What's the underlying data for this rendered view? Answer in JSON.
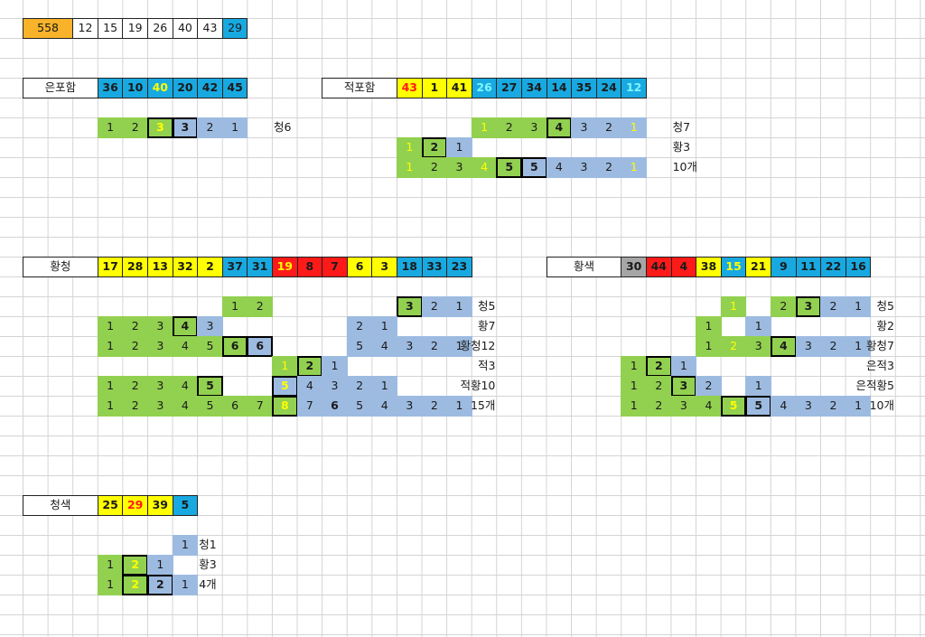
{
  "colors": {
    "orange": "#f8b32a",
    "yellow": "#ffff00",
    "blue": "#18a9e1",
    "red": "#ff1a1a",
    "gray": "#a6a6a6",
    "green": "#92d050",
    "lightblue": "#9dbbe0",
    "white": "#ffffff",
    "text_dark": "#1a1a1a",
    "text_red": "#ff1a1a",
    "text_yellow": "#ffff00",
    "text_cyan": "#7ff5ff"
  },
  "header_row": [
    {
      "text": "558",
      "color": "orange"
    },
    {
      "text": "12",
      "color": "white"
    },
    {
      "text": "15",
      "color": "white"
    },
    {
      "text": "19",
      "color": "white"
    },
    {
      "text": "26",
      "color": "white"
    },
    {
      "text": "40",
      "color": "white"
    },
    {
      "text": "43",
      "color": "white"
    },
    {
      "text": "29",
      "color": "blue"
    }
  ],
  "groups": [
    {
      "label": "은포함",
      "numbers": [
        {
          "text": "36",
          "color": "blue"
        },
        {
          "text": "10",
          "color": "blue"
        },
        {
          "text": "40",
          "color": "blue",
          "text_color": "yellow"
        },
        {
          "text": "20",
          "color": "blue"
        },
        {
          "text": "42",
          "color": "blue"
        },
        {
          "text": "45",
          "color": "blue"
        }
      ],
      "rows": [
        {
          "cells": [
            {
              "text": "1",
              "color": "green"
            },
            {
              "text": "2",
              "color": "green"
            },
            {
              "text": "3",
              "color": "green",
              "text_color": "yellow",
              "boxed": true
            },
            {
              "text": "3",
              "color": "lightblue",
              "boxed": true
            },
            {
              "text": "2",
              "color": "lightblue"
            },
            {
              "text": "1",
              "color": "lightblue"
            }
          ],
          "tag": "청6"
        }
      ]
    },
    {
      "label": "적포함",
      "numbers": [
        {
          "text": "43",
          "color": "yellow",
          "text_color": "red"
        },
        {
          "text": "1",
          "color": "yellow"
        },
        {
          "text": "41",
          "color": "yellow"
        },
        {
          "text": "26",
          "color": "blue",
          "text_color": "cyan"
        },
        {
          "text": "27",
          "color": "blue"
        },
        {
          "text": "34",
          "color": "blue"
        },
        {
          "text": "14",
          "color": "blue"
        },
        {
          "text": "35",
          "color": "blue"
        },
        {
          "text": "24",
          "color": "blue"
        },
        {
          "text": "12",
          "color": "blue",
          "text_color": "cyan"
        }
      ],
      "rows": [
        {
          "cells": [
            {
              "text": "1",
              "color": "green",
              "text_color": "yellow"
            },
            {
              "text": "2",
              "color": "green"
            },
            {
              "text": "3",
              "color": "green"
            },
            {
              "text": "4",
              "color": "green",
              "boxed": true
            },
            {
              "text": "3",
              "color": "lightblue"
            },
            {
              "text": "2",
              "color": "lightblue"
            },
            {
              "text": "1",
              "color": "lightblue",
              "text_color": "yellow"
            }
          ],
          "tag": "청7"
        },
        {
          "cells": [
            {
              "text": "1",
              "color": "green",
              "text_color": "yellow"
            },
            {
              "text": "2",
              "color": "green",
              "boxed": true
            },
            {
              "text": "1",
              "color": "lightblue"
            }
          ],
          "tag": "황3"
        },
        {
          "cells": [
            {
              "text": "1",
              "color": "green",
              "text_color": "yellow"
            },
            {
              "text": "2",
              "color": "green"
            },
            {
              "text": "3",
              "color": "green"
            },
            {
              "text": "4",
              "color": "green",
              "text_color": "yellow"
            },
            {
              "text": "5",
              "color": "green",
              "boxed": true
            },
            {
              "text": "5",
              "color": "lightblue",
              "boxed": true
            },
            {
              "text": "4",
              "color": "lightblue"
            },
            {
              "text": "3",
              "color": "lightblue"
            },
            {
              "text": "2",
              "color": "lightblue"
            },
            {
              "text": "1",
              "color": "lightblue",
              "text_color": "yellow"
            }
          ],
          "tag": "10개"
        }
      ]
    },
    {
      "label": "황청",
      "numbers": [
        {
          "text": "17",
          "color": "yellow"
        },
        {
          "text": "28",
          "color": "yellow"
        },
        {
          "text": "13",
          "color": "yellow"
        },
        {
          "text": "32",
          "color": "yellow"
        },
        {
          "text": "2",
          "color": "yellow"
        },
        {
          "text": "37",
          "color": "blue"
        },
        {
          "text": "31",
          "color": "blue"
        },
        {
          "text": "19",
          "color": "red",
          "text_color": "yellow"
        },
        {
          "text": "8",
          "color": "red"
        },
        {
          "text": "7",
          "color": "red"
        },
        {
          "text": "6",
          "color": "yellow"
        },
        {
          "text": "3",
          "color": "yellow"
        },
        {
          "text": "18",
          "color": "blue"
        },
        {
          "text": "33",
          "color": "blue"
        },
        {
          "text": "23",
          "color": "blue"
        }
      ],
      "rows": [
        {
          "cells": [
            {
              "text": "1",
              "color": "green"
            },
            {
              "text": "2",
              "color": "green"
            },
            {
              "text": "3",
              "color": "green",
              "boxed": true
            },
            {
              "text": "2",
              "color": "lightblue"
            },
            {
              "text": "1",
              "color": "lightblue"
            }
          ],
          "tag": "청5"
        },
        {
          "cells": [
            {
              "text": "1",
              "color": "green"
            },
            {
              "text": "2",
              "color": "green"
            },
            {
              "text": "3",
              "color": "green"
            },
            {
              "text": "4",
              "color": "green",
              "boxed": true
            },
            {
              "text": "3",
              "color": "lightblue"
            },
            {
              "text": "2",
              "color": "lightblue"
            },
            {
              "text": "1",
              "color": "lightblue"
            }
          ],
          "tag": "황7"
        },
        {
          "cells": [
            {
              "text": "1",
              "color": "green"
            },
            {
              "text": "2",
              "color": "green"
            },
            {
              "text": "3",
              "color": "green"
            },
            {
              "text": "4",
              "color": "green"
            },
            {
              "text": "5",
              "color": "green"
            },
            {
              "text": "6",
              "color": "green",
              "boxed": true
            },
            {
              "text": "6",
              "color": "lightblue",
              "boxed": true
            },
            {
              "text": "5",
              "color": "lightblue"
            },
            {
              "text": "4",
              "color": "lightblue"
            },
            {
              "text": "3",
              "color": "lightblue"
            },
            {
              "text": "2",
              "color": "lightblue"
            },
            {
              "text": "1",
              "color": "lightblue"
            }
          ],
          "tag": "황청12"
        },
        {
          "cells": [
            {
              "text": "1",
              "color": "green",
              "text_color": "yellow"
            },
            {
              "text": "2",
              "color": "green",
              "boxed": true
            },
            {
              "text": "1",
              "color": "lightblue"
            }
          ],
          "tag": "적3"
        },
        {
          "cells": [
            {
              "text": "1",
              "color": "green"
            },
            {
              "text": "2",
              "color": "green"
            },
            {
              "text": "3",
              "color": "green"
            },
            {
              "text": "4",
              "color": "green"
            },
            {
              "text": "5",
              "color": "green",
              "boxed": true
            },
            {
              "text": "5",
              "color": "lightblue",
              "text_color": "yellow",
              "boxed": true
            },
            {
              "text": "4",
              "color": "lightblue"
            },
            {
              "text": "3",
              "color": "lightblue"
            },
            {
              "text": "2",
              "color": "lightblue"
            },
            {
              "text": "1",
              "color": "lightblue"
            }
          ],
          "tag": "적황10"
        },
        {
          "cells": [
            {
              "text": "1",
              "color": "green"
            },
            {
              "text": "2",
              "color": "green"
            },
            {
              "text": "3",
              "color": "green"
            },
            {
              "text": "4",
              "color": "green"
            },
            {
              "text": "5",
              "color": "green"
            },
            {
              "text": "6",
              "color": "green"
            },
            {
              "text": "7",
              "color": "green"
            },
            {
              "text": "8",
              "color": "green",
              "text_color": "yellow",
              "boxed": true
            },
            {
              "text": "7",
              "color": "lightblue"
            },
            {
              "text": "6",
              "color": "lightblue",
              "bold": true
            },
            {
              "text": "5",
              "color": "lightblue"
            },
            {
              "text": "4",
              "color": "lightblue"
            },
            {
              "text": "3",
              "color": "lightblue"
            },
            {
              "text": "2",
              "color": "lightblue"
            },
            {
              "text": "1",
              "color": "lightblue"
            }
          ],
          "tag": "15개"
        }
      ]
    },
    {
      "label": "황색",
      "numbers": [
        {
          "text": "30",
          "color": "gray"
        },
        {
          "text": "44",
          "color": "red"
        },
        {
          "text": "4",
          "color": "red"
        },
        {
          "text": "38",
          "color": "yellow"
        },
        {
          "text": "15",
          "color": "blue",
          "text_color": "yellow"
        },
        {
          "text": "21",
          "color": "yellow"
        },
        {
          "text": "9",
          "color": "blue"
        },
        {
          "text": "11",
          "color": "blue"
        },
        {
          "text": "22",
          "color": "blue"
        },
        {
          "text": "16",
          "color": "blue"
        }
      ],
      "rows": [
        {
          "cells": [
            {
              "text": "1",
              "color": "green",
              "text_color": "yellow"
            },
            {
              "text": "2",
              "color": "green"
            },
            {
              "text": "3",
              "color": "green",
              "boxed": true
            },
            {
              "text": "2",
              "color": "lightblue"
            },
            {
              "text": "1",
              "color": "lightblue"
            }
          ],
          "tag": "청5"
        },
        {
          "cells": [
            {
              "text": "1",
              "color": "green"
            },
            {
              "text": "1",
              "color": "lightblue"
            }
          ],
          "tag": "황2"
        },
        {
          "cells": [
            {
              "text": "1",
              "color": "green"
            },
            {
              "text": "2",
              "color": "green",
              "text_color": "yellow"
            },
            {
              "text": "3",
              "color": "green"
            },
            {
              "text": "4",
              "color": "green",
              "boxed": true
            },
            {
              "text": "3",
              "color": "lightblue"
            },
            {
              "text": "2",
              "color": "lightblue"
            },
            {
              "text": "1",
              "color": "lightblue"
            }
          ],
          "tag": "황청7"
        },
        {
          "cells": [
            {
              "text": "1",
              "color": "green"
            },
            {
              "text": "2",
              "color": "green",
              "boxed": true
            },
            {
              "text": "1",
              "color": "lightblue"
            }
          ],
          "tag": "은적3"
        },
        {
          "cells": [
            {
              "text": "1",
              "color": "green"
            },
            {
              "text": "2",
              "color": "green"
            },
            {
              "text": "3",
              "color": "green",
              "boxed": true
            },
            {
              "text": "2",
              "color": "lightblue"
            },
            {
              "text": "1",
              "color": "lightblue"
            }
          ],
          "tag": "은적황5"
        },
        {
          "cells": [
            {
              "text": "1",
              "color": "green"
            },
            {
              "text": "2",
              "color": "green"
            },
            {
              "text": "3",
              "color": "green"
            },
            {
              "text": "4",
              "color": "green"
            },
            {
              "text": "5",
              "color": "green",
              "text_color": "yellow",
              "boxed": true
            },
            {
              "text": "5",
              "color": "lightblue",
              "boxed": true
            },
            {
              "text": "4",
              "color": "lightblue"
            },
            {
              "text": "3",
              "color": "lightblue"
            },
            {
              "text": "2",
              "color": "lightblue"
            },
            {
              "text": "1",
              "color": "lightblue"
            }
          ],
          "tag": "10개"
        }
      ]
    },
    {
      "label": "청색",
      "numbers": [
        {
          "text": "25",
          "color": "yellow"
        },
        {
          "text": "29",
          "color": "yellow",
          "text_color": "red"
        },
        {
          "text": "39",
          "color": "yellow"
        },
        {
          "text": "5",
          "color": "blue"
        }
      ],
      "rows": [
        {
          "cells": [
            {
              "text": "1",
              "color": "lightblue"
            }
          ],
          "tag": "청1"
        },
        {
          "cells": [
            {
              "text": "1",
              "color": "green"
            },
            {
              "text": "2",
              "color": "green",
              "text_color": "yellow",
              "boxed": true
            },
            {
              "text": "1",
              "color": "lightblue"
            }
          ],
          "tag": "황3"
        },
        {
          "cells": [
            {
              "text": "1",
              "color": "green"
            },
            {
              "text": "2",
              "color": "green",
              "text_color": "yellow",
              "boxed": true
            },
            {
              "text": "2",
              "color": "lightblue",
              "boxed": true
            },
            {
              "text": "1",
              "color": "lightblue"
            }
          ],
          "tag": "4개"
        }
      ]
    }
  ]
}
